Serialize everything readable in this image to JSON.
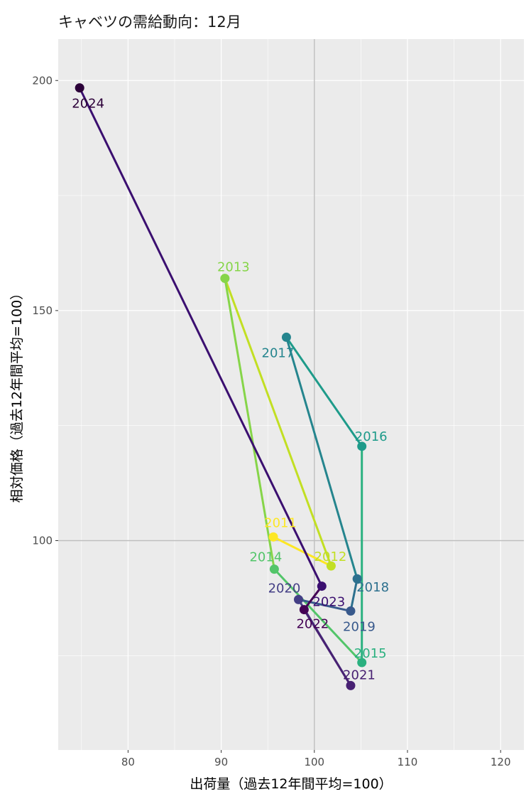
{
  "chart_data": {
    "type": "scatter",
    "title": "キャベツの需給動向：12月",
    "xlabel": "出荷量（過去12年間平均=100）",
    "ylabel": "相対価格（過去12年間平均=100）",
    "xlim": [
      72.5,
      122.5
    ],
    "ylim": [
      54.5,
      209
    ],
    "x_ticks": [
      "80",
      "90",
      "100",
      "110",
      "120"
    ],
    "y_ticks": [
      "100",
      "150",
      "200"
    ],
    "reference_lines": {
      "x": 100,
      "y": 100
    },
    "grid": true,
    "connected_in_year_order": true,
    "points": [
      {
        "year": "2011",
        "x": 95.6,
        "y": 100.8,
        "color": "#FDE725"
      },
      {
        "year": "2012",
        "x": 101.8,
        "y": 94.5,
        "color": "#C2DF23"
      },
      {
        "year": "2013",
        "x": 90.4,
        "y": 157.0,
        "color": "#86D549"
      },
      {
        "year": "2014",
        "x": 95.7,
        "y": 93.8,
        "color": "#52C569"
      },
      {
        "year": "2015",
        "x": 105.1,
        "y": 73.5,
        "color": "#2AB07F"
      },
      {
        "year": "2016",
        "x": 105.1,
        "y": 120.5,
        "color": "#1E9B8A"
      },
      {
        "year": "2017",
        "x": 97.0,
        "y": 144.2,
        "color": "#25858E"
      },
      {
        "year": "2018",
        "x": 104.6,
        "y": 91.7,
        "color": "#2D708E"
      },
      {
        "year": "2019",
        "x": 103.9,
        "y": 84.7,
        "color": "#38598C"
      },
      {
        "year": "2020",
        "x": 98.3,
        "y": 87.2,
        "color": "#433E85"
      },
      {
        "year": "2021",
        "x": 103.9,
        "y": 68.5,
        "color": "#482173"
      },
      {
        "year": "2022",
        "x": 98.9,
        "y": 85.0,
        "color": "#440154"
      },
      {
        "year": "2023",
        "x": 100.8,
        "y": 90.1,
        "color": "#3B0F70"
      },
      {
        "year": "2024",
        "x": 74.8,
        "y": 198.4,
        "color": "#2C0039"
      }
    ]
  },
  "colors": {
    "panel_background": "#EBEBEB",
    "grid_major": "#FFFFFF",
    "reference_line": "#BEBEBE"
  }
}
